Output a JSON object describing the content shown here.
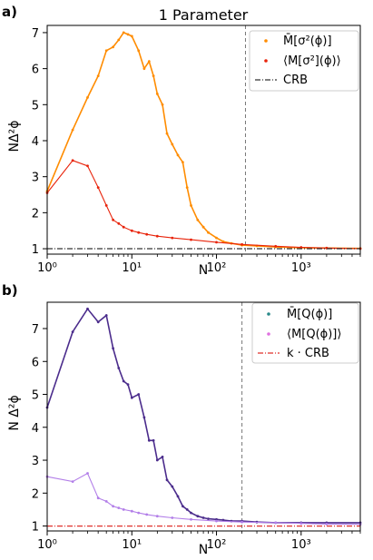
{
  "chart_data": [
    {
      "panel_label": "a)",
      "type": "line",
      "title": "1 Parameter",
      "xlabel": "N",
      "ylabel": "NΔ²ϕ",
      "xscale": "log",
      "xlim": [
        1,
        5000
      ],
      "ylim": [
        0.85,
        7.2
      ],
      "xticks": [
        1,
        10,
        100,
        1000
      ],
      "xtick_labels": [
        "10⁰",
        "10¹",
        "10²",
        "10³"
      ],
      "yticks": [
        1,
        2,
        3,
        4,
        5,
        6,
        7
      ],
      "vline_x": 220,
      "legend_position": "top-right",
      "series": [
        {
          "name": "M̄[σ²(ϕ)]",
          "color": "#ff8c00",
          "x": [
            1,
            2,
            3,
            4,
            5,
            6,
            7,
            8,
            9,
            10,
            12,
            14,
            16,
            18,
            20,
            23,
            26,
            30,
            35,
            40,
            45,
            50,
            60,
            70,
            80,
            100,
            120,
            150,
            200,
            300,
            500,
            1000,
            2000,
            5000
          ],
          "y": [
            2.6,
            4.3,
            5.2,
            5.8,
            6.5,
            6.6,
            6.8,
            7.0,
            6.95,
            6.9,
            6.5,
            6.0,
            6.2,
            5.8,
            5.3,
            5.0,
            4.2,
            3.9,
            3.6,
            3.4,
            2.7,
            2.2,
            1.8,
            1.6,
            1.45,
            1.3,
            1.2,
            1.15,
            1.1,
            1.08,
            1.05,
            1.03,
            1.02,
            1.01
          ]
        },
        {
          "name": "⟨M[σ²](ϕ)⟩",
          "color": "#e8230a",
          "x": [
            1,
            2,
            3,
            4,
            5,
            6,
            7,
            8,
            10,
            12,
            15,
            20,
            30,
            50,
            100,
            200,
            500,
            1000,
            2000,
            5000
          ],
          "y": [
            2.55,
            3.45,
            3.3,
            2.7,
            2.2,
            1.8,
            1.7,
            1.6,
            1.5,
            1.45,
            1.4,
            1.35,
            1.3,
            1.25,
            1.18,
            1.12,
            1.07,
            1.04,
            1.02,
            1.0
          ]
        },
        {
          "name": "CRB",
          "color": "#333333",
          "x": [
            1,
            5000
          ],
          "y": [
            1,
            1
          ]
        }
      ]
    },
    {
      "panel_label": "b)",
      "type": "line",
      "title": "",
      "xlabel": "N",
      "ylabel": "N Δ²ϕ",
      "xscale": "log",
      "xlim": [
        1,
        5000
      ],
      "ylim": [
        0.85,
        7.8
      ],
      "xticks": [
        1,
        10,
        100,
        1000
      ],
      "xtick_labels": [
        "10⁰",
        "10¹",
        "10²",
        "10³"
      ],
      "yticks": [
        1,
        2,
        3,
        4,
        5,
        6,
        7
      ],
      "vline_x": 200,
      "legend_position": "top-right",
      "series": [
        {
          "name": "M̄[Q(ϕ)]",
          "color": "#4b2c8c",
          "x": [
            1,
            2,
            3,
            4,
            5,
            6,
            7,
            8,
            9,
            10,
            12,
            14,
            16,
            18,
            20,
            23,
            26,
            30,
            35,
            40,
            45,
            50,
            60,
            70,
            80,
            100,
            120,
            150,
            200,
            300,
            500,
            1000,
            2000,
            5000
          ],
          "y": [
            4.6,
            6.9,
            7.6,
            7.2,
            7.4,
            6.4,
            5.8,
            5.4,
            5.3,
            4.9,
            5.0,
            4.3,
            3.6,
            3.6,
            3.0,
            3.1,
            2.4,
            2.2,
            1.9,
            1.6,
            1.5,
            1.4,
            1.3,
            1.25,
            1.22,
            1.2,
            1.18,
            1.15,
            1.15,
            1.12,
            1.1,
            1.1,
            1.1,
            1.1
          ]
        },
        {
          "name": "⟨M[Q(ϕ)]⟩",
          "color": "#b27ee8",
          "x": [
            1,
            2,
            3,
            4,
            5,
            6,
            7,
            8,
            10,
            12,
            15,
            20,
            30,
            50,
            100,
            200,
            500,
            1000,
            2000,
            5000
          ],
          "y": [
            2.5,
            2.35,
            2.6,
            1.85,
            1.75,
            1.6,
            1.55,
            1.5,
            1.45,
            1.4,
            1.35,
            1.3,
            1.25,
            1.2,
            1.15,
            1.12,
            1.1,
            1.08,
            1.06,
            1.05
          ]
        },
        {
          "name": "k · CRB",
          "color": "#e0302a",
          "x": [
            1,
            5000
          ],
          "y": [
            1,
            1
          ]
        }
      ]
    }
  ]
}
